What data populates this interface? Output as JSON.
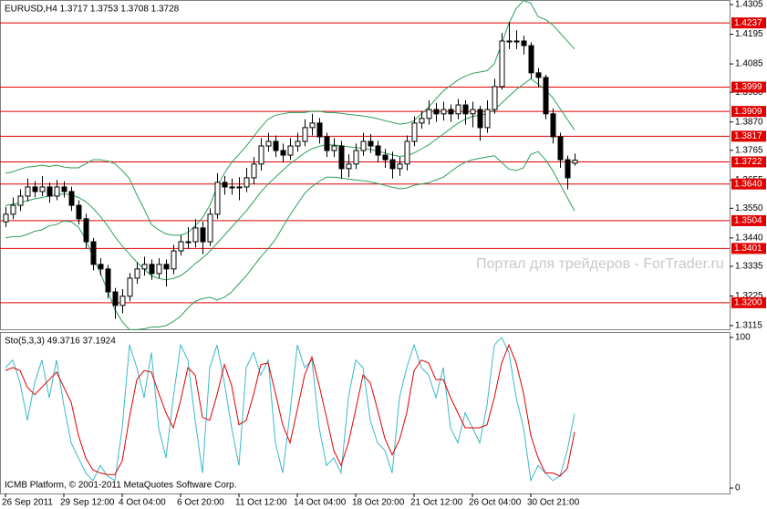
{
  "chart_data": [
    {
      "type": "candlestick",
      "title": "EURUSD,H4  1.3717 1.3753 1.3708 1.3728",
      "watermark": "Портал для трейдеров - ForTrader.ru",
      "categories": [
        "26 Sep 2011",
        null,
        null,
        null,
        null,
        null,
        null,
        null,
        "29 Sep 12:00",
        null,
        null,
        null,
        null,
        null,
        null,
        null,
        "4 Oct 04:00",
        null,
        null,
        null,
        null,
        null,
        null,
        null,
        "6 Oct 20:00",
        null,
        null,
        null,
        null,
        null,
        null,
        null,
        "11 Oct 12:00",
        null,
        null,
        null,
        null,
        null,
        null,
        null,
        "14 Oct 04:00",
        null,
        null,
        null,
        null,
        null,
        null,
        null,
        "18 Oct 20:00",
        null,
        null,
        null,
        null,
        null,
        null,
        null,
        "21 Oct 12:00",
        null,
        null,
        null,
        null,
        null,
        null,
        null,
        "26 Oct 04:00",
        null,
        null,
        null,
        null,
        null,
        null,
        null,
        "30 Oct 21:00",
        null,
        null,
        null,
        null,
        null,
        null
      ],
      "open": [
        1.35,
        1.3528,
        1.3561,
        1.3595,
        1.3629,
        1.3612,
        1.3629,
        1.3595,
        1.3629,
        1.3612,
        1.3561,
        1.3511,
        1.3426,
        1.3342,
        1.3325,
        1.324,
        1.319,
        1.3224,
        1.3291,
        1.3325,
        1.3342,
        1.3308,
        1.3342,
        1.3325,
        1.3392,
        1.3426,
        1.3426,
        1.3477,
        1.3426,
        1.3528,
        1.3646,
        1.3629,
        1.3629,
        1.3629,
        1.3663,
        1.3714,
        1.3781,
        1.3798,
        1.3764,
        1.3747,
        1.3781,
        1.3798,
        1.3849,
        1.3866,
        1.3815,
        1.3764,
        1.3781,
        1.3697,
        1.3714,
        1.3764,
        1.3798,
        1.3781,
        1.3747,
        1.373,
        1.3697,
        1.3714,
        1.3798,
        1.3866,
        1.3883,
        1.3916,
        1.39,
        1.3916,
        1.39,
        1.3933,
        1.39,
        1.3916,
        1.3849,
        1.3916,
        1.4001,
        1.417,
        1.417,
        1.417,
        1.4153,
        1.4052,
        1.4035,
        1.39,
        1.3815,
        1.373,
        1.3717
      ],
      "high": [
        1.3555,
        1.359,
        1.362,
        1.366,
        1.365,
        1.367,
        1.3645,
        1.3655,
        1.365,
        1.363,
        1.358,
        1.353,
        1.344,
        1.3365,
        1.334,
        1.3255,
        1.325,
        1.331,
        1.335,
        1.337,
        1.336,
        1.3365,
        1.336,
        1.3415,
        1.345,
        1.348,
        1.351,
        1.35,
        1.355,
        1.368,
        1.367,
        1.366,
        1.3665,
        1.37,
        1.374,
        1.381,
        1.383,
        1.382,
        1.379,
        1.381,
        1.383,
        1.388,
        1.39,
        1.3885,
        1.383,
        1.381,
        1.38,
        1.375,
        1.379,
        1.383,
        1.3825,
        1.38,
        1.377,
        1.376,
        1.374,
        1.382,
        1.389,
        1.391,
        1.395,
        1.394,
        1.3945,
        1.3935,
        1.3955,
        1.395,
        1.3945,
        1.393,
        1.395,
        1.403,
        1.42,
        1.424,
        1.421,
        1.419,
        1.4165,
        1.407,
        1.4045,
        1.392,
        1.383,
        1.3745,
        1.3753
      ],
      "low": [
        1.348,
        1.351,
        1.354,
        1.3575,
        1.359,
        1.3595,
        1.357,
        1.358,
        1.359,
        1.354,
        1.349,
        1.34,
        1.332,
        1.33,
        1.3215,
        1.314,
        1.316,
        1.3205,
        1.327,
        1.33,
        1.3285,
        1.329,
        1.326,
        1.3305,
        1.3375,
        1.34,
        1.3405,
        1.338,
        1.341,
        1.351,
        1.36,
        1.36,
        1.358,
        1.361,
        1.364,
        1.369,
        1.376,
        1.374,
        1.372,
        1.373,
        1.376,
        1.378,
        1.382,
        1.379,
        1.374,
        1.374,
        1.366,
        1.3665,
        1.3695,
        1.3745,
        1.3755,
        1.372,
        1.37,
        1.366,
        1.367,
        1.369,
        1.378,
        1.3845,
        1.386,
        1.387,
        1.3875,
        1.387,
        1.388,
        1.386,
        1.385,
        1.38,
        1.383,
        1.39,
        1.399,
        1.414,
        1.414,
        1.412,
        1.403,
        1.4,
        1.388,
        1.379,
        1.37,
        1.362,
        1.3708
      ],
      "close": [
        1.3528,
        1.3561,
        1.3595,
        1.3629,
        1.3612,
        1.3629,
        1.3595,
        1.3629,
        1.3612,
        1.3561,
        1.3511,
        1.3426,
        1.3342,
        1.3325,
        1.324,
        1.319,
        1.3224,
        1.3291,
        1.3325,
        1.3342,
        1.3308,
        1.3342,
        1.3325,
        1.3392,
        1.3426,
        1.3426,
        1.3477,
        1.3426,
        1.3528,
        1.3646,
        1.3629,
        1.3629,
        1.3629,
        1.3663,
        1.3714,
        1.3781,
        1.3798,
        1.3764,
        1.3747,
        1.3781,
        1.3798,
        1.3849,
        1.3866,
        1.3815,
        1.3764,
        1.3781,
        1.3697,
        1.3714,
        1.3764,
        1.3798,
        1.3781,
        1.3747,
        1.373,
        1.3697,
        1.3714,
        1.3798,
        1.3866,
        1.3883,
        1.3916,
        1.39,
        1.3916,
        1.39,
        1.3933,
        1.39,
        1.3916,
        1.3849,
        1.3916,
        1.4001,
        1.417,
        1.417,
        1.417,
        1.4153,
        1.4052,
        1.4035,
        1.39,
        1.3815,
        1.373,
        1.3663,
        1.3728
      ],
      "bands": {
        "color": "#2e9e5b",
        "upper": [
          1.368,
          1.3685,
          1.3695,
          1.3703,
          1.3705,
          1.371,
          1.3705,
          1.371,
          1.3703,
          1.37,
          1.37,
          1.3715,
          1.373,
          1.373,
          1.3725,
          1.3715,
          1.369,
          1.366,
          1.36,
          1.3547,
          1.349,
          1.347,
          1.3455,
          1.345,
          1.345,
          1.346,
          1.3485,
          1.3515,
          1.356,
          1.363,
          1.368,
          1.372,
          1.375,
          1.378,
          1.3815,
          1.385,
          1.388,
          1.3895,
          1.39,
          1.3905,
          1.3905,
          1.3905,
          1.391,
          1.391,
          1.3905,
          1.3905,
          1.3902,
          1.3898,
          1.3895,
          1.3892,
          1.3888,
          1.3882,
          1.3875,
          1.3868,
          1.3862,
          1.3865,
          1.3875,
          1.39,
          1.3925,
          1.3955,
          1.3985,
          1.4005,
          1.4025,
          1.404,
          1.405,
          1.4055,
          1.406,
          1.4085,
          1.416,
          1.4235,
          1.429,
          1.432,
          1.431,
          1.426,
          1.425,
          1.423,
          1.42,
          1.417,
          1.414
        ],
        "middle": [
          1.356,
          1.3565,
          1.357,
          1.3578,
          1.3585,
          1.359,
          1.3595,
          1.36,
          1.3603,
          1.36,
          1.359,
          1.3575,
          1.355,
          1.352,
          1.3485,
          1.3445,
          1.341,
          1.338,
          1.335,
          1.3325,
          1.33,
          1.329,
          1.3285,
          1.329,
          1.33,
          1.332,
          1.3345,
          1.3365,
          1.339,
          1.342,
          1.345,
          1.348,
          1.351,
          1.354,
          1.3575,
          1.361,
          1.364,
          1.3665,
          1.369,
          1.3715,
          1.3735,
          1.3755,
          1.377,
          1.378,
          1.3785,
          1.3785,
          1.3782,
          1.3778,
          1.3775,
          1.3772,
          1.3768,
          1.3762,
          1.3755,
          1.3748,
          1.3742,
          1.3745,
          1.3755,
          1.377,
          1.3785,
          1.3805,
          1.3825,
          1.3845,
          1.3865,
          1.388,
          1.389,
          1.3895,
          1.39,
          1.3915,
          1.394,
          1.3965,
          1.399,
          1.401,
          1.403,
          1.401,
          1.399,
          1.396,
          1.392,
          1.388,
          1.384
        ],
        "lower": [
          1.344,
          1.3445,
          1.3445,
          1.3453,
          1.3465,
          1.347,
          1.3485,
          1.349,
          1.3503,
          1.35,
          1.348,
          1.3435,
          1.337,
          1.331,
          1.3245,
          1.3175,
          1.313,
          1.31,
          1.31,
          1.3103,
          1.311,
          1.311,
          1.3115,
          1.313,
          1.315,
          1.318,
          1.3205,
          1.3215,
          1.322,
          1.321,
          1.322,
          1.324,
          1.327,
          1.33,
          1.3335,
          1.337,
          1.34,
          1.3435,
          1.348,
          1.3525,
          1.3565,
          1.3605,
          1.363,
          1.365,
          1.3665,
          1.3665,
          1.3662,
          1.3658,
          1.3655,
          1.3652,
          1.3648,
          1.3642,
          1.3635,
          1.3628,
          1.3622,
          1.3625,
          1.3635,
          1.364,
          1.3645,
          1.3655,
          1.3665,
          1.3685,
          1.3705,
          1.372,
          1.373,
          1.3735,
          1.374,
          1.3745,
          1.372,
          1.3695,
          1.369,
          1.37,
          1.375,
          1.376,
          1.373,
          1.369,
          1.364,
          1.359,
          1.354
        ]
      },
      "levels": {
        "color": "#e00000",
        "values": [
          1.4237,
          1.3999,
          1.3909,
          1.3817,
          1.3722,
          {
            "value": 1.364,
            "label": "1.3640"
          },
          1.3504,
          1.3401,
          {
            "value": 1.32,
            "label": "1.3200"
          }
        ]
      },
      "ylim": [
        1.3098,
        1.4322
      ],
      "yticks": [
        1.4305,
        1.4195,
        1.4085,
        {
          "value": 1.398,
          "label": "1.3980"
        },
        {
          "value": 1.387,
          "label": "1.3870"
        },
        1.3765,
        1.3655,
        {
          "value": 1.355,
          "label": "1.3550"
        },
        {
          "value": 1.344,
          "label": "1.3440"
        },
        1.3335,
        1.3225,
        1.3115
      ],
      "grid": false
    },
    {
      "type": "line",
      "title": "Sto(5,3,3) 49.3716 37.1924",
      "footer": "ICMB Platform, © 2001-2011 MetaQuotes Software Corp.",
      "series": [
        {
          "color": "#3bb8c9",
          "values": [
            80,
            85,
            70,
            45,
            70,
            85,
            60,
            85,
            55,
            30,
            20,
            10,
            5,
            15,
            8,
            5,
            40,
            95,
            80,
            60,
            90,
            40,
            20,
            60,
            95,
            85,
            45,
            10,
            80,
            95,
            70,
            40,
            15,
            80,
            90,
            75,
            85,
            30,
            10,
            50,
            95,
            80,
            85,
            40,
            15,
            20,
            10,
            60,
            85,
            80,
            45,
            30,
            25,
            10,
            60,
            80,
            95,
            80,
            75,
            60,
            80,
            40,
            30,
            50,
            40,
            30,
            55,
            95,
            100,
            90,
            60,
            40,
            5,
            15,
            10,
            5,
            8,
            25,
            49.3716
          ]
        },
        {
          "color": "#e00000",
          "values": [
            78,
            80,
            78,
            67,
            62,
            67,
            72,
            77,
            67,
            57,
            35,
            20,
            12,
            10,
            9,
            9,
            18,
            47,
            72,
            78,
            77,
            63,
            50,
            40,
            58,
            80,
            75,
            47,
            45,
            62,
            82,
            68,
            42,
            45,
            62,
            82,
            83,
            63,
            42,
            30,
            52,
            75,
            87,
            68,
            47,
            25,
            15,
            30,
            52,
            75,
            70,
            52,
            33,
            22,
            32,
            50,
            78,
            85,
            83,
            72,
            72,
            60,
            50,
            40,
            40,
            40,
            42,
            60,
            83,
            95,
            83,
            63,
            35,
            20,
            10,
            10,
            8,
            13,
            37.1924
          ]
        }
      ],
      "ylim": [
        -3.6,
        103.6
      ],
      "yticks": [
        0,
        100
      ],
      "grid": false
    }
  ]
}
